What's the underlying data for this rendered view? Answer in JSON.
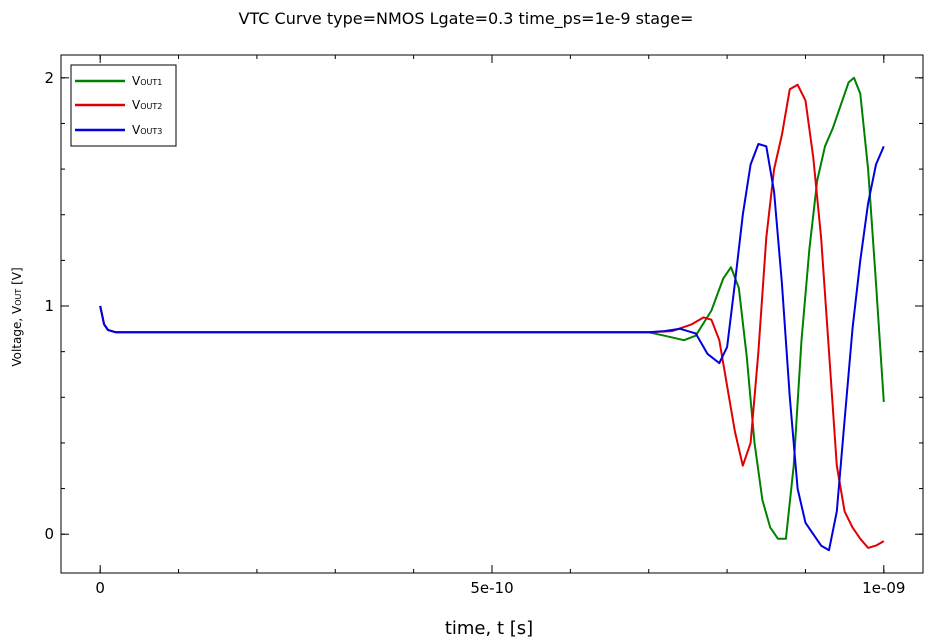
{
  "chart_data": {
    "type": "line",
    "title": "VTC Curve type=NMOS Lgate=0.3 time_ps=1e-9 stage=",
    "xlabel": "time, t [s]",
    "ylabel": {
      "main": "Voltage, V",
      "sub": "OUT",
      "unit": " [V]"
    },
    "xlim": [
      -5e-11,
      1.05e-09
    ],
    "ylim": [
      -0.17,
      2.1
    ],
    "x_ticks": [
      {
        "value": 0,
        "label": "0"
      },
      {
        "value": 5e-10,
        "label": "5e-10"
      },
      {
        "value": 1e-09,
        "label": "1e-09"
      }
    ],
    "y_ticks": [
      {
        "value": 0,
        "label": "0"
      },
      {
        "value": 1,
        "label": "1"
      },
      {
        "value": 2,
        "label": "2"
      }
    ],
    "grid": false,
    "legend_position": "top-left",
    "series": [
      {
        "name": "V",
        "name_sub": "OUT1",
        "color": "#008000",
        "x": [
          0,
          5e-12,
          1e-11,
          2e-11,
          1e-10,
          3e-10,
          5e-10,
          7e-10,
          7.2e-10,
          7.45e-10,
          7.6e-10,
          7.8e-10,
          7.95e-10,
          8.05e-10,
          8.15e-10,
          8.25e-10,
          8.35e-10,
          8.45e-10,
          8.55e-10,
          8.65e-10,
          8.75e-10,
          8.85e-10,
          8.95e-10,
          9.05e-10,
          9.15e-10,
          9.25e-10,
          9.35e-10,
          9.45e-10,
          9.55e-10,
          9.62e-10,
          9.7e-10,
          9.8e-10,
          9.9e-10,
          1e-09
        ],
        "y": [
          1.0,
          0.92,
          0.895,
          0.885,
          0.885,
          0.885,
          0.885,
          0.885,
          0.87,
          0.85,
          0.87,
          0.98,
          1.12,
          1.17,
          1.08,
          0.78,
          0.4,
          0.15,
          0.03,
          -0.02,
          -0.02,
          0.3,
          0.85,
          1.25,
          1.55,
          1.7,
          1.78,
          1.88,
          1.98,
          2.0,
          1.93,
          1.6,
          1.1,
          0.58
        ]
      },
      {
        "name": "V",
        "name_sub": "OUT2",
        "color": "#e00000",
        "x": [
          0,
          5e-12,
          1e-11,
          2e-11,
          1e-10,
          3e-10,
          5e-10,
          7e-10,
          7.3e-10,
          7.55e-10,
          7.7e-10,
          7.8e-10,
          7.9e-10,
          8e-10,
          8.1e-10,
          8.2e-10,
          8.3e-10,
          8.4e-10,
          8.5e-10,
          8.6e-10,
          8.7e-10,
          8.8e-10,
          8.9e-10,
          9e-10,
          9.1e-10,
          9.2e-10,
          9.3e-10,
          9.4e-10,
          9.5e-10,
          9.6e-10,
          9.7e-10,
          9.8e-10,
          9.9e-10,
          1e-09
        ],
        "y": [
          1.0,
          0.92,
          0.895,
          0.885,
          0.885,
          0.885,
          0.885,
          0.885,
          0.89,
          0.92,
          0.95,
          0.94,
          0.85,
          0.65,
          0.45,
          0.3,
          0.4,
          0.8,
          1.3,
          1.6,
          1.75,
          1.95,
          1.97,
          1.9,
          1.65,
          1.3,
          0.8,
          0.3,
          0.1,
          0.03,
          -0.02,
          -0.06,
          -0.05,
          -0.03
        ]
      },
      {
        "name": "V",
        "name_sub": "OUT3",
        "color": "#0000e0",
        "x": [
          0,
          5e-12,
          1e-11,
          2e-11,
          1e-10,
          3e-10,
          5e-10,
          7e-10,
          7.2e-10,
          7.4e-10,
          7.6e-10,
          7.75e-10,
          7.9e-10,
          8e-10,
          8.1e-10,
          8.2e-10,
          8.3e-10,
          8.4e-10,
          8.5e-10,
          8.6e-10,
          8.7e-10,
          8.8e-10,
          8.9e-10,
          9e-10,
          9.1e-10,
          9.2e-10,
          9.3e-10,
          9.4e-10,
          9.5e-10,
          9.6e-10,
          9.7e-10,
          9.8e-10,
          9.9e-10,
          1e-09
        ],
        "y": [
          1.0,
          0.92,
          0.895,
          0.885,
          0.885,
          0.885,
          0.885,
          0.885,
          0.89,
          0.9,
          0.88,
          0.79,
          0.75,
          0.82,
          1.1,
          1.4,
          1.62,
          1.71,
          1.7,
          1.5,
          1.1,
          0.6,
          0.2,
          0.05,
          0.0,
          -0.05,
          -0.07,
          0.1,
          0.5,
          0.9,
          1.2,
          1.45,
          1.62,
          1.7
        ]
      }
    ]
  }
}
